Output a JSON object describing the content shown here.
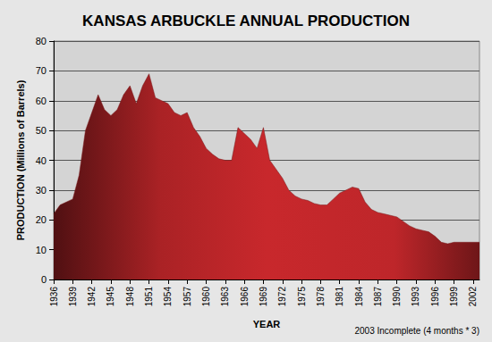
{
  "chart_data": {
    "type": "area",
    "title": "KANSAS ARBUCKLE ANNUAL PRODUCTION",
    "x_label": "YEAR",
    "y_label": "PRODUCTION (Millions of Barrels)",
    "annotations": [
      "2003 Incomplete (4 months * 3)"
    ],
    "categories": [
      "1936",
      null,
      null,
      "1939",
      null,
      null,
      "1942",
      null,
      null,
      "1945",
      null,
      null,
      "1948",
      null,
      null,
      "1951",
      null,
      null,
      "1954",
      null,
      null,
      "1957",
      null,
      null,
      "1960",
      null,
      null,
      "1963",
      null,
      null,
      "1966",
      null,
      null,
      "1969",
      null,
      null,
      "1972",
      null,
      null,
      "1975",
      null,
      null,
      "1978",
      null,
      null,
      "1981",
      null,
      null,
      "1984",
      null,
      null,
      "1987",
      null,
      null,
      "1990",
      null,
      null,
      "1993",
      null,
      null,
      "1996",
      null,
      null,
      "1999",
      null,
      null,
      "2002",
      null
    ],
    "values": [
      22,
      25,
      26,
      27,
      35,
      50,
      56,
      62,
      57,
      55,
      57,
      62,
      65,
      59,
      65,
      69,
      61,
      60,
      59,
      56,
      55,
      56,
      51,
      48,
      44,
      42,
      40.5,
      40,
      40,
      51,
      49,
      47,
      44,
      51,
      40,
      37,
      34,
      30,
      28,
      27,
      26.5,
      25.5,
      25,
      25,
      27,
      29,
      30,
      31,
      30.5,
      26,
      23.5,
      22.5,
      22,
      21.5,
      21,
      19.5,
      18,
      17,
      16.5,
      16,
      14.5,
      12.5,
      12,
      12.5,
      12.5,
      12.5,
      12.5,
      12.5
    ],
    "color": "#c8282c",
    "ylim": [
      0,
      80
    ],
    "yticks": [
      0,
      10,
      20,
      30,
      40,
      50,
      60,
      70,
      80
    ],
    "grid": true
  }
}
